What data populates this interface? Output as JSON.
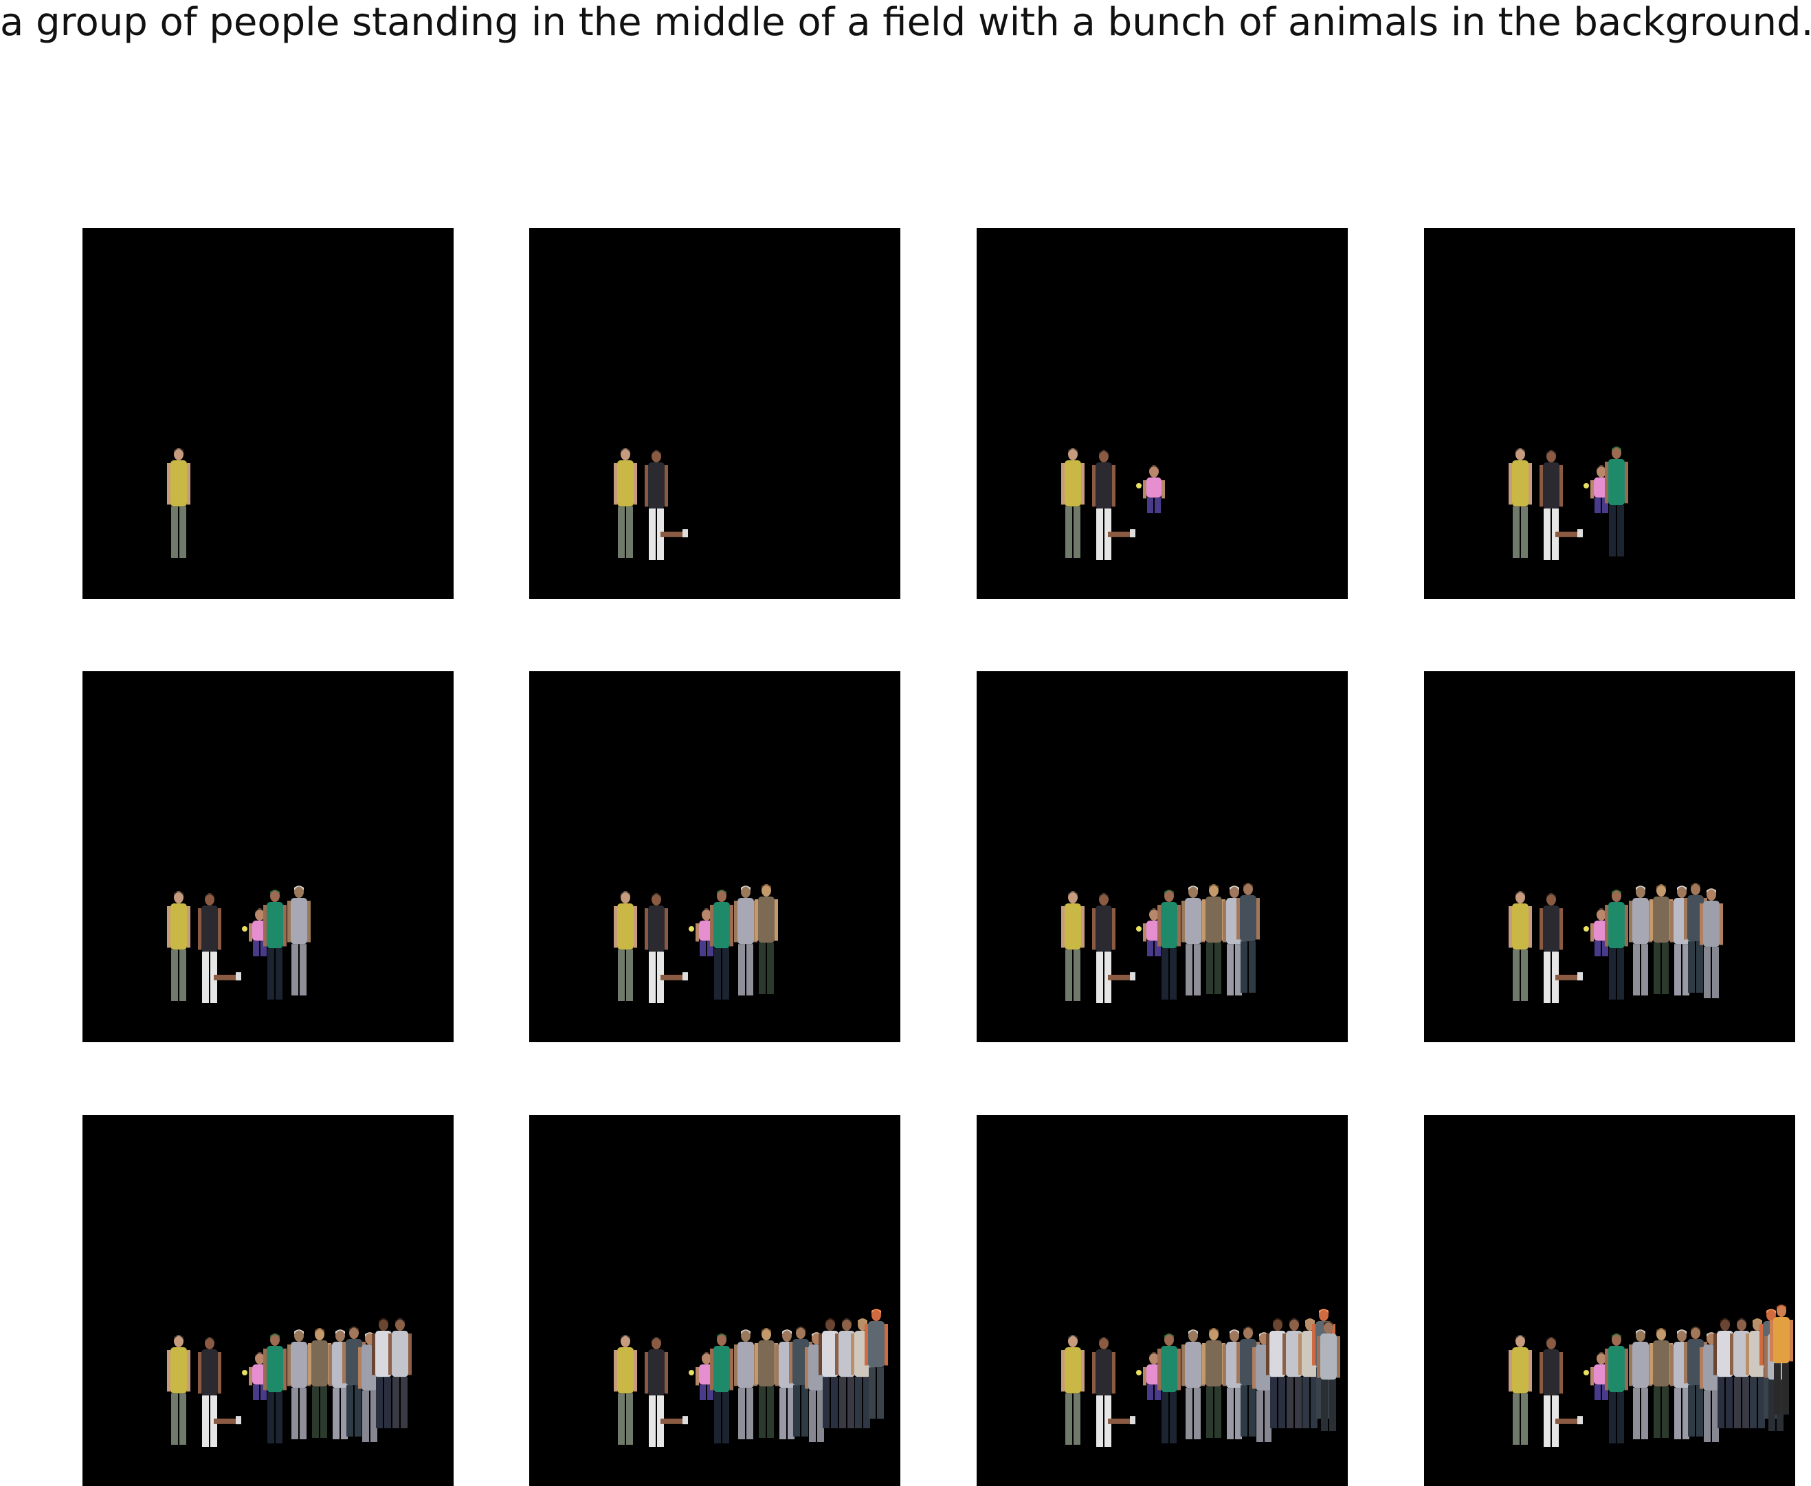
{
  "caption": "a group of people standing in the middle of a field with a bunch of animals in the background.",
  "background_color": "#000000",
  "panels": [
    {
      "figures": 1
    },
    {
      "figures": 2
    },
    {
      "figures": 3
    },
    {
      "figures": 4
    },
    {
      "figures": 5
    },
    {
      "figures": 6
    },
    {
      "figures": 8
    },
    {
      "figures": 9
    },
    {
      "figures": 11
    },
    {
      "figures": 13
    },
    {
      "figures": 14
    },
    {
      "figures": 15
    }
  ]
}
